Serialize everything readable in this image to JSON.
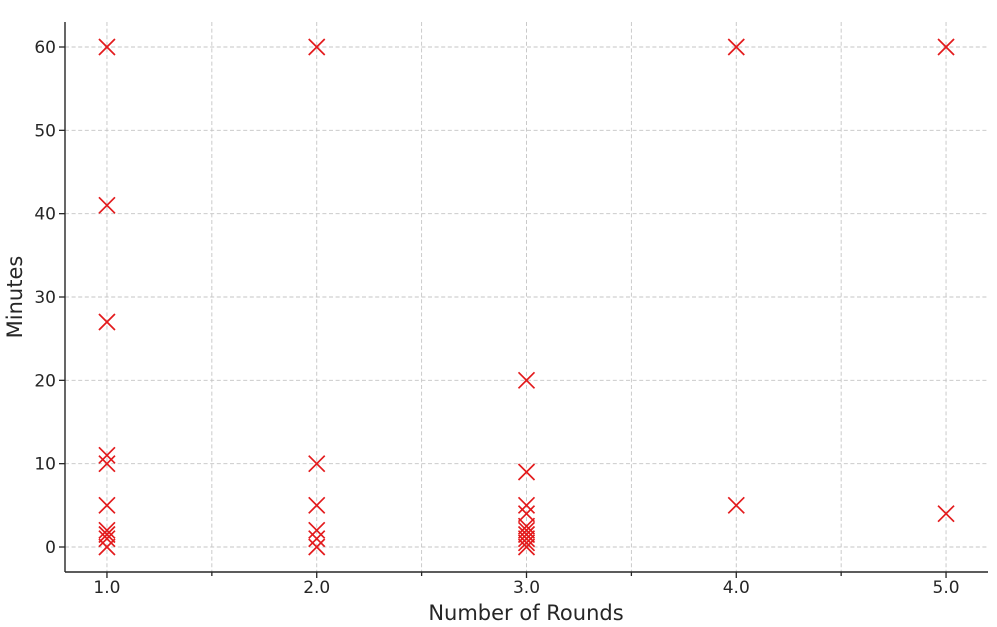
{
  "chart_data": {
    "type": "scatter",
    "title": "",
    "xlabel": "Number of Rounds",
    "ylabel": "Minutes",
    "xlim": [
      0.8,
      5.2
    ],
    "ylim": [
      -3,
      63
    ],
    "xticks": [
      1.0,
      2.0,
      3.0,
      4.0,
      5.0
    ],
    "xtick_labels": [
      "1.0",
      "2.0",
      "3.0",
      "4.0",
      "5.0"
    ],
    "xminor_ticks": [
      1.5,
      2.5,
      3.5,
      4.5
    ],
    "yticks": [
      0,
      10,
      20,
      30,
      40,
      50,
      60
    ],
    "ytick_labels": [
      "0",
      "10",
      "20",
      "30",
      "40",
      "50",
      "60"
    ],
    "grid": true,
    "marker": "x",
    "color": "#e31a1c",
    "points": [
      {
        "x": 1,
        "y": 60
      },
      {
        "x": 1,
        "y": 41
      },
      {
        "x": 1,
        "y": 27
      },
      {
        "x": 1,
        "y": 11
      },
      {
        "x": 1,
        "y": 10
      },
      {
        "x": 1,
        "y": 5
      },
      {
        "x": 1,
        "y": 2
      },
      {
        "x": 1,
        "y": 1.5
      },
      {
        "x": 1,
        "y": 1
      },
      {
        "x": 1,
        "y": 0
      },
      {
        "x": 2,
        "y": 60
      },
      {
        "x": 2,
        "y": 10
      },
      {
        "x": 2,
        "y": 5
      },
      {
        "x": 2,
        "y": 2
      },
      {
        "x": 2,
        "y": 1
      },
      {
        "x": 2,
        "y": 0
      },
      {
        "x": 3,
        "y": 20
      },
      {
        "x": 3,
        "y": 9
      },
      {
        "x": 3,
        "y": 5
      },
      {
        "x": 3,
        "y": 4
      },
      {
        "x": 3,
        "y": 2.5
      },
      {
        "x": 3,
        "y": 2
      },
      {
        "x": 3,
        "y": 1.5
      },
      {
        "x": 3,
        "y": 1
      },
      {
        "x": 3,
        "y": 0.5
      },
      {
        "x": 3,
        "y": 0
      },
      {
        "x": 4,
        "y": 60
      },
      {
        "x": 4,
        "y": 5
      },
      {
        "x": 5,
        "y": 60
      },
      {
        "x": 5,
        "y": 4
      }
    ]
  }
}
